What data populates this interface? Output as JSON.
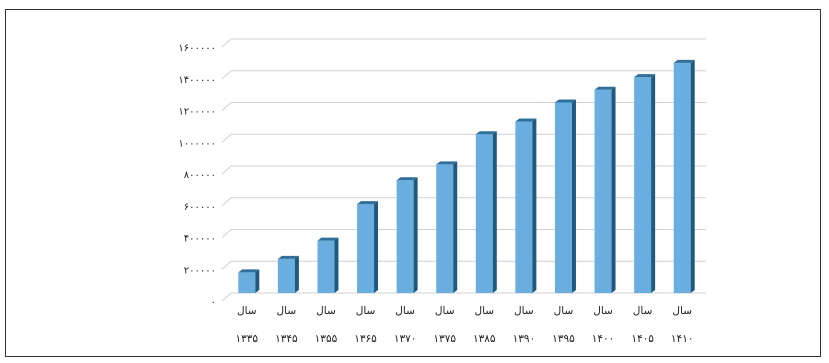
{
  "chart_data": {
    "type": "bar",
    "title": "",
    "xlabel": "",
    "ylabel": "",
    "ylim": [
      0,
      1600000
    ],
    "y_ticks": [
      {
        "value": 0,
        "label": "۰"
      },
      {
        "value": 200000,
        "label": "۲۰۰۰۰۰"
      },
      {
        "value": 400000,
        "label": "۴۰۰۰۰۰"
      },
      {
        "value": 600000,
        "label": "۶۰۰۰۰۰"
      },
      {
        "value": 800000,
        "label": "۸۰۰۰۰۰"
      },
      {
        "value": 1000000,
        "label": "۱۰۰۰۰۰۰"
      },
      {
        "value": 1200000,
        "label": "۱۲۰۰۰۰۰"
      },
      {
        "value": 1400000,
        "label": "۱۴۰۰۰۰۰"
      },
      {
        "value": 1600000,
        "label": "۱۶۰۰۰۰۰"
      }
    ],
    "categories": [
      {
        "line1": "سال",
        "line2": "۱۳۳۵"
      },
      {
        "line1": "سال",
        "line2": "۱۳۴۵"
      },
      {
        "line1": "سال",
        "line2": "۱۳۵۵"
      },
      {
        "line1": "سال",
        "line2": "۱۳۶۵"
      },
      {
        "line1": "سال",
        "line2": "۱۳۷۰"
      },
      {
        "line1": "سال",
        "line2": "۱۳۷۵"
      },
      {
        "line1": "سال",
        "line2": "۱۳۸۵"
      },
      {
        "line1": "سال",
        "line2": "۱۳۹۰"
      },
      {
        "line1": "سال",
        "line2": "۱۳۹۵"
      },
      {
        "line1": "سال",
        "line2": "۱۴۰۰"
      },
      {
        "line1": "سال",
        "line2": "۱۴۰۵"
      },
      {
        "line1": "سال",
        "line2": "۱۴۱۰"
      }
    ],
    "values": [
      130000,
      215000,
      330000,
      560000,
      710000,
      810000,
      1000000,
      1080000,
      1200000,
      1280000,
      1360000,
      1450000
    ],
    "grid": true,
    "legend": "none",
    "colors": {
      "bar_front": "#6aaee0",
      "bar_side": "#1f5a7e",
      "bar_top": "#2f6f99",
      "grid": "#d0d0d0"
    }
  }
}
